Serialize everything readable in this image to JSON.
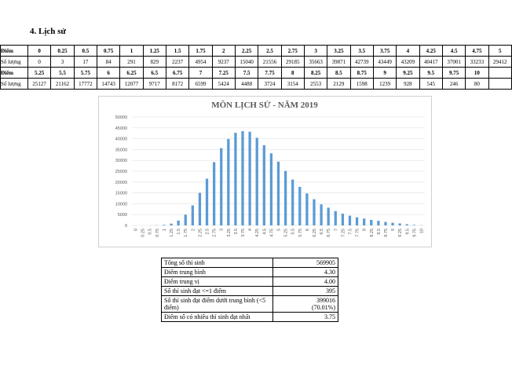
{
  "heading": "4.  Lịch sử",
  "score_table": {
    "rows": [
      [
        "Điểm",
        "0",
        "0.25",
        "0.5",
        "0.75",
        "1",
        "1.25",
        "1.5",
        "1.75",
        "2",
        "2.25",
        "2.5",
        "2.75",
        "3",
        "3.25",
        "3.5",
        "3.75",
        "4",
        "4.25",
        "4.5",
        "4.75",
        "5"
      ],
      [
        "Số lượng",
        "0",
        "3",
        "17",
        "84",
        "291",
        "829",
        "2237",
        "4954",
        "9237",
        "15040",
        "21556",
        "29185",
        "35663",
        "39871",
        "42739",
        "43449",
        "43209",
        "40417",
        "37001",
        "33233",
        "29412"
      ],
      [
        "Điểm",
        "5.25",
        "5.5",
        "5.75",
        "6",
        "6.25",
        "6.5",
        "6.75",
        "7",
        "7.25",
        "7.5",
        "7.75",
        "8",
        "8.25",
        "8.5",
        "8.75",
        "9",
        "9.25",
        "9.5",
        "9.75",
        "10"
      ],
      [
        "Số lượng",
        "25127",
        "21162",
        "17772",
        "14743",
        "12077",
        "9717",
        "8172",
        "6599",
        "5424",
        "4488",
        "3724",
        "3154",
        "2553",
        "2129",
        "1598",
        "1239",
        "928",
        "545",
        "246",
        "80"
      ]
    ]
  },
  "chart_data": {
    "type": "bar",
    "title": "MÔN LỊCH SỬ - NĂM 2019",
    "categories": [
      "0",
      "0.25",
      "0.5",
      "0.75",
      "1",
      "1.25",
      "1.5",
      "1.75",
      "2",
      "2.25",
      "2.5",
      "2.75",
      "3",
      "3.25",
      "3.5",
      "3.75",
      "4",
      "4.25",
      "4.5",
      "4.75",
      "5",
      "5.25",
      "5.5",
      "5.75",
      "6",
      "6.25",
      "6.5",
      "6.75",
      "7",
      "7.25",
      "7.5",
      "7.75",
      "8",
      "8.25",
      "8.5",
      "8.75",
      "9",
      "9.25",
      "9.5",
      "9.75",
      "10"
    ],
    "values": [
      0,
      3,
      17,
      84,
      291,
      829,
      2237,
      4954,
      9237,
      15040,
      21556,
      29185,
      35663,
      39871,
      42739,
      43449,
      43209,
      40417,
      37001,
      33233,
      29412,
      25127,
      21162,
      17772,
      14743,
      12077,
      9717,
      8172,
      6599,
      5424,
      4488,
      3724,
      3154,
      2553,
      2129,
      1598,
      1239,
      928,
      545,
      246,
      80
    ],
    "color": "#5b9bd5",
    "ylim": [
      0,
      50000
    ],
    "yticks": [
      0,
      5000,
      10000,
      15000,
      20000,
      25000,
      30000,
      35000,
      40000,
      45000,
      50000
    ],
    "grid": true
  },
  "summary": {
    "rows": [
      [
        "Tổng số thí sinh",
        "569905"
      ],
      [
        "Điểm trung bình",
        "4.30"
      ],
      [
        "Điểm trung vị",
        "4.00"
      ],
      [
        "Số thí sinh đạt <=1 điểm",
        "395"
      ],
      [
        "Số thí sinh đạt điểm dưới trung bình (<5 điểm)",
        "399016",
        "(70.01%)"
      ],
      [
        "Điểm số có nhiều thí sinh đạt nhất",
        "3.75"
      ]
    ]
  }
}
